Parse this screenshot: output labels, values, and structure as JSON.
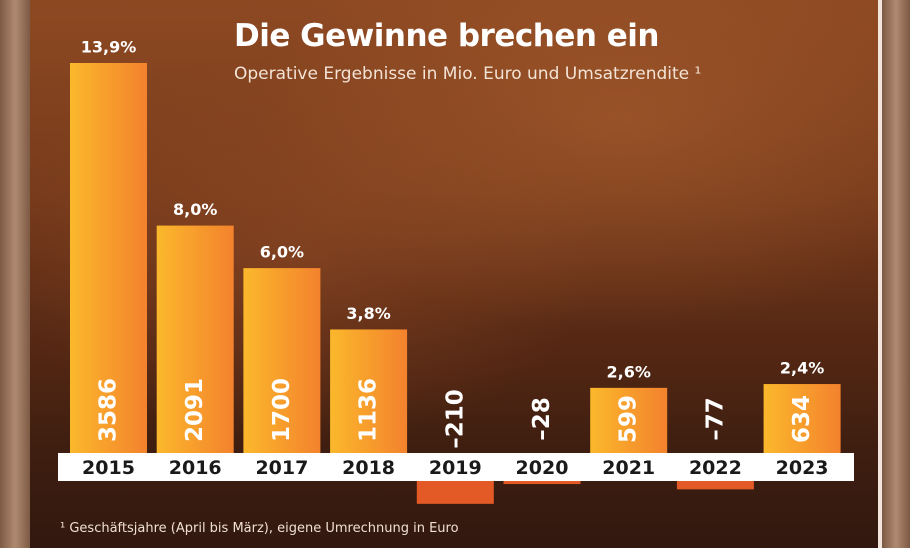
{
  "title": "Die Gewinne brechen ein",
  "subtitle": "Operative Ergebnisse in Mio. Euro und Umsatzrendite ¹",
  "footnote": "¹ Geschäftsjahre (April bis März), eigene Umrechnung in Euro",
  "colors": {
    "bar_light": "#fbb82c",
    "bar_dark": "#f3822d",
    "negative": "#e35a27",
    "axis_band": "#ffffff",
    "label": "#ffffff"
  },
  "chart_data": {
    "type": "bar",
    "categories": [
      "2015",
      "2016",
      "2017",
      "2018",
      "2019",
      "2020",
      "2021",
      "2022",
      "2023"
    ],
    "values": [
      3586,
      2091,
      1700,
      1136,
      -210,
      -28,
      599,
      -77,
      634
    ],
    "value_labels": [
      "3586",
      "2091",
      "1700",
      "1136",
      "–210",
      "–28",
      "599",
      "–77",
      "634"
    ],
    "margins": [
      "13,9%",
      "8,0%",
      "6,0%",
      "3,8%",
      "",
      "",
      "2,6%",
      "",
      "2,4%"
    ],
    "ylim": [
      -250,
      3700
    ],
    "grid": false,
    "legend": "none"
  }
}
